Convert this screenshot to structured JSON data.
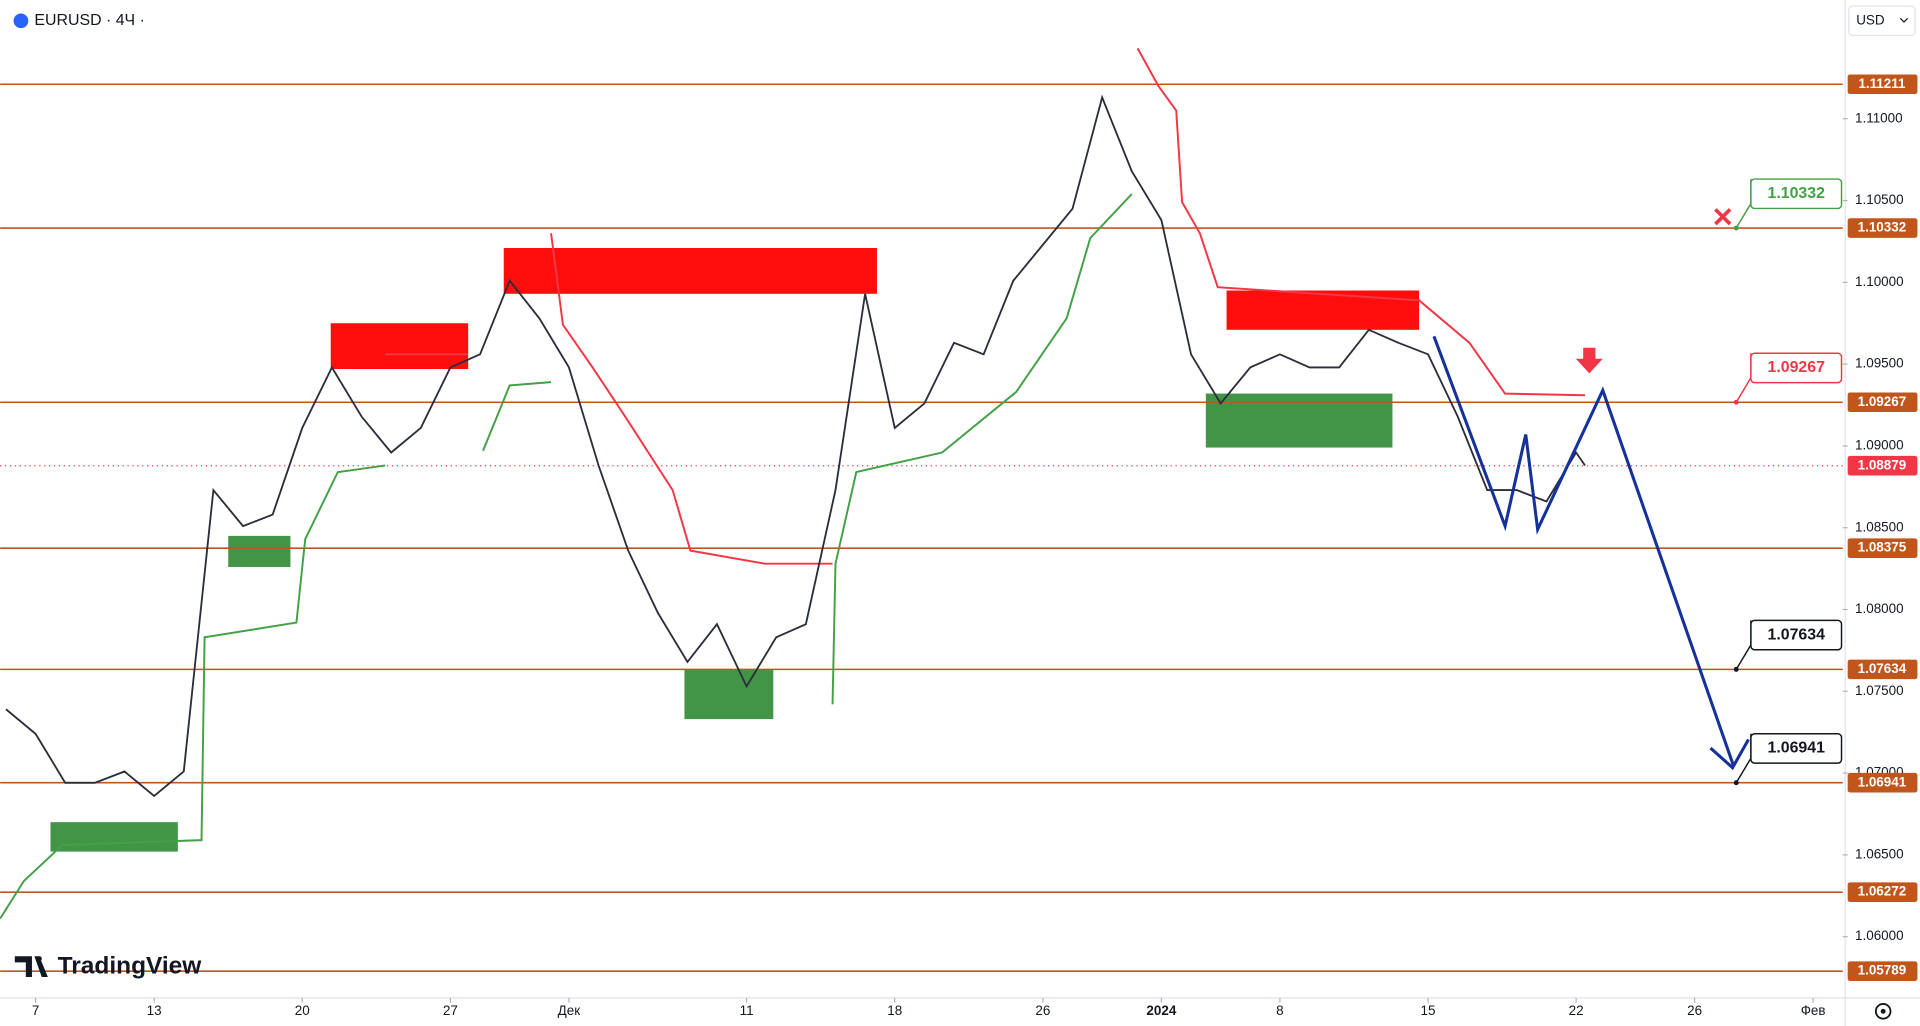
{
  "chart_data": {
    "type": "line",
    "title": "EURUSD · 4Ч ·",
    "currency": "USD",
    "brand": "TradingView",
    "xlim": [
      -1.2,
      61
    ],
    "ylim": [
      1.05626,
      1.11726
    ],
    "xticks": [
      {
        "value": 0,
        "label": "7"
      },
      {
        "value": 4,
        "label": "13"
      },
      {
        "value": 9,
        "label": "20"
      },
      {
        "value": 14,
        "label": "27"
      },
      {
        "value": 18,
        "label": "Дек"
      },
      {
        "value": 24,
        "label": "11"
      },
      {
        "value": 29,
        "label": "18"
      },
      {
        "value": 34,
        "label": "26"
      },
      {
        "value": 38,
        "label": "2024"
      },
      {
        "value": 42,
        "label": "8"
      },
      {
        "value": 47,
        "label": "15"
      },
      {
        "value": 52,
        "label": "22"
      },
      {
        "value": 56,
        "label": "26"
      },
      {
        "value": 60,
        "label": "Фев"
      }
    ],
    "yticks": [
      {
        "value": 1.06,
        "label": "1.06000"
      },
      {
        "value": 1.065,
        "label": "1.06500"
      },
      {
        "value": 1.07,
        "label": "1.07000"
      },
      {
        "value": 1.075,
        "label": "1.07500"
      },
      {
        "value": 1.08,
        "label": "1.08000"
      },
      {
        "value": 1.085,
        "label": "1.08500"
      },
      {
        "value": 1.09,
        "label": "1.09000"
      },
      {
        "value": 1.095,
        "label": "1.09500"
      },
      {
        "value": 1.1,
        "label": "1.10000"
      },
      {
        "value": 1.105,
        "label": "1.10500"
      },
      {
        "value": 1.11,
        "label": "1.11000"
      }
    ],
    "x": [
      -1,
      0,
      1,
      2,
      3,
      4,
      5,
      6,
      7,
      8,
      9,
      10,
      11,
      12,
      13,
      14,
      15,
      16,
      17,
      18,
      19,
      20,
      21,
      22,
      23,
      24,
      25,
      26,
      27,
      28,
      29,
      30,
      31,
      32,
      33,
      34,
      35,
      36,
      37,
      38,
      39,
      40,
      41,
      42,
      43,
      44,
      45,
      46,
      47,
      48,
      49,
      50,
      51,
      52,
      52.3
    ],
    "values": [
      1.0739,
      1.0724,
      1.0694,
      1.0694,
      1.0701,
      1.0686,
      1.0701,
      1.0873,
      1.0851,
      1.0858,
      1.0911,
      1.0948,
      1.0918,
      1.0896,
      1.0911,
      1.0948,
      1.0956,
      1.1001,
      1.0978,
      1.0948,
      1.0888,
      1.0836,
      1.0798,
      1.0768,
      1.0791,
      1.0753,
      1.0783,
      1.0791,
      1.0873,
      1.0993,
      1.0911,
      1.0926,
      1.0963,
      1.0956,
      1.1001,
      1.1023,
      1.1045,
      1.1113,
      1.1068,
      1.1038,
      1.0956,
      1.0926,
      1.0948,
      1.0956,
      1.0948,
      1.0948,
      1.0971,
      1.0963,
      1.0956,
      1.0918,
      1.0873,
      1.0873,
      1.0866,
      1.0896,
      1.0888
    ],
    "color": "#2a2e39",
    "trails": [
      {
        "color": "#43a047",
        "x": [
          -1.2,
          -0.4,
          0.9,
          5.6,
          5.7,
          8.8,
          9.1,
          10.2,
          11.8
        ],
        "values": [
          1.0611,
          1.0634,
          1.0656,
          1.0659,
          1.0783,
          1.0792,
          1.0843,
          1.0884,
          1.0888
        ]
      },
      {
        "color": "#43a047",
        "x": [
          15.1,
          16,
          17.4
        ],
        "values": [
          1.0897,
          1.0937,
          1.0939
        ]
      },
      {
        "color": "#43a047",
        "x": [
          26.9,
          27,
          27.7,
          30.6,
          33.1,
          34.8,
          35.6,
          37
        ],
        "values": [
          1.0742,
          1.0828,
          1.0884,
          1.0896,
          1.0933,
          1.0978,
          1.1027,
          1.1054
        ]
      },
      {
        "color": "#f23645",
        "x": [
          11.8,
          14.6
        ],
        "values": [
          1.0956,
          1.0956
        ]
      },
      {
        "color": "#f23645",
        "x": [
          17.4,
          17.8,
          18.8,
          19.9,
          21.5,
          22.1,
          24.6,
          26.9
        ],
        "values": [
          1.103,
          1.0974,
          1.0948,
          1.0918,
          1.0873,
          1.0836,
          1.0828,
          1.0828
        ]
      },
      {
        "color": "#f23645",
        "x": [
          37.2,
          37.9,
          38.5,
          38.7,
          39.3,
          39.9,
          46.7,
          48.4,
          49.6,
          52.3
        ],
        "values": [
          1.1143,
          1.112,
          1.1105,
          1.1049,
          1.103,
          1.0997,
          1.0989,
          1.0963,
          1.0932,
          1.0931
        ]
      }
    ],
    "zones": [
      {
        "color": "#ff0000",
        "x": [
          9.96,
          14.6
        ],
        "y": [
          1.0947,
          1.0975
        ]
      },
      {
        "color": "#ff0000",
        "x": [
          15.8,
          28.4
        ],
        "y": [
          1.0993,
          1.1021
        ]
      },
      {
        "color": "#ff0000",
        "x": [
          40.2,
          46.7
        ],
        "y": [
          1.0971,
          1.0995
        ]
      },
      {
        "color": "#388e3c",
        "x": [
          0.5,
          4.8
        ],
        "y": [
          1.0652,
          1.067
        ]
      },
      {
        "color": "#388e3c",
        "x": [
          6.5,
          8.6
        ],
        "y": [
          1.0826,
          1.0845
        ]
      },
      {
        "color": "#388e3c",
        "x": [
          21.9,
          24.9
        ],
        "y": [
          1.0733,
          1.0763
        ]
      },
      {
        "color": "#388e3c",
        "x": [
          39.5,
          45.8
        ],
        "y": [
          1.0899,
          1.0932
        ]
      }
    ],
    "projection": {
      "color": "#15319a",
      "x": [
        47.2,
        49.6,
        50.3,
        50.7,
        52.9,
        57.3
      ],
      "values": [
        1.0967,
        1.0851,
        1.0907,
        1.0849,
        1.0934,
        1.0705
      ]
    },
    "levels": [
      1.11211,
      1.10332,
      1.09267,
      1.08375,
      1.07634,
      1.06941,
      1.06272,
      1.05789
    ],
    "level_color": "#c0561b",
    "current_price": 1.08879,
    "current_color": "#f23645",
    "callouts": [
      {
        "value": 1.10332,
        "color": "#43a047"
      },
      {
        "value": 1.09267,
        "color": "#f23645"
      },
      {
        "value": 1.07634,
        "color": "#131722"
      },
      {
        "value": 1.06941,
        "color": "#131722"
      }
    ]
  }
}
